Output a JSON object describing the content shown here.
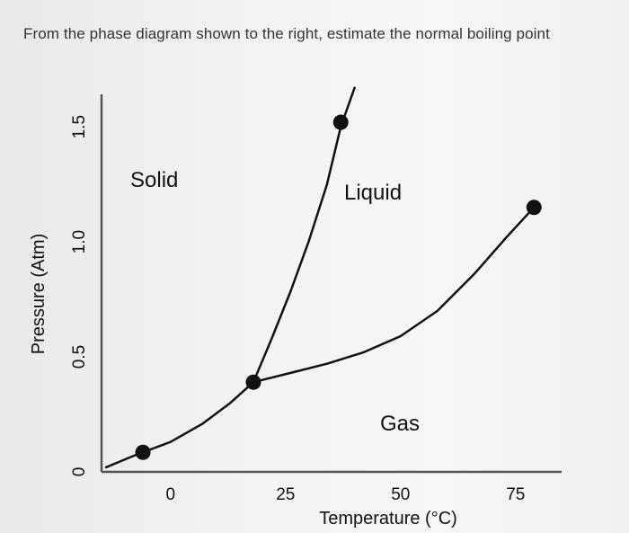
{
  "question_text": "From the phase diagram shown to the right, estimate the normal boiling point",
  "chart_data": {
    "type": "line",
    "title": "",
    "xlabel": "Temperature (°C)",
    "ylabel": "Pressure (Atm)",
    "xlim": [
      -15,
      85
    ],
    "ylim": [
      0,
      1.7
    ],
    "x_ticks": [
      0,
      25,
      50,
      75
    ],
    "x_tick_labels": [
      "0",
      "25",
      "50",
      "75"
    ],
    "y_ticks": [
      0,
      0.5,
      1.0,
      1.5
    ],
    "y_tick_labels": [
      "0",
      "0.5",
      "1.0",
      "1.5"
    ],
    "grid": false,
    "legend": "none",
    "region_labels": {
      "solid": "Solid",
      "liquid": "Liquid",
      "gas": "Gas"
    },
    "series": [
      {
        "key": "sublimation",
        "x": [
          -14,
          -8,
          0,
          7,
          13,
          18
        ],
        "y": [
          0.02,
          0.07,
          0.13,
          0.21,
          0.3,
          0.39
        ],
        "color": "#111111"
      },
      {
        "key": "melting",
        "x": [
          18,
          22,
          26,
          30,
          34,
          37,
          40
        ],
        "y": [
          0.39,
          0.58,
          0.78,
          1.0,
          1.25,
          1.5,
          1.67
        ],
        "color": "#111111"
      },
      {
        "key": "vaporization",
        "x": [
          18,
          26,
          34,
          42,
          50,
          58,
          66,
          73,
          79
        ],
        "y": [
          0.39,
          0.43,
          0.47,
          0.52,
          0.59,
          0.7,
          0.86,
          1.02,
          1.15
        ],
        "color": "#111111"
      }
    ],
    "points": [
      {
        "key": "low-point",
        "x": -6,
        "y": 0.085
      },
      {
        "key": "triple-point",
        "x": 18,
        "y": 0.39
      },
      {
        "key": "melting-end-point",
        "x": 37,
        "y": 1.52
      },
      {
        "key": "critical-point",
        "x": 79,
        "y": 1.15
      }
    ]
  }
}
